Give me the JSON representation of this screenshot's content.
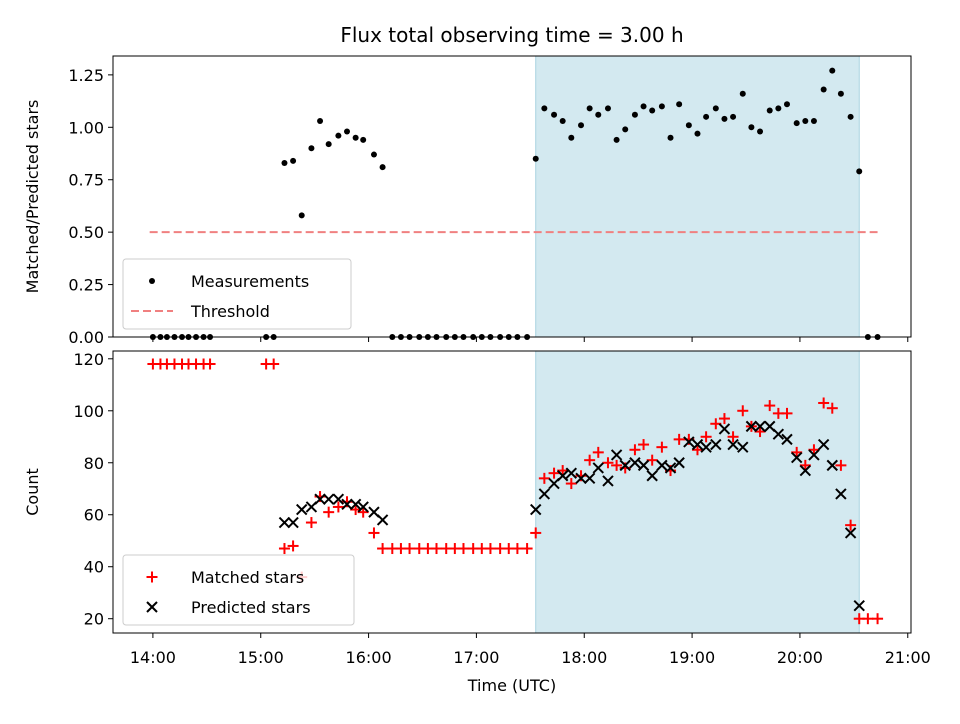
{
  "chart_data": {
    "title": "Flux total observing time = 3.00 h",
    "xlabel": "Time (UTC)",
    "x_tick_labels": [
      "14:00",
      "15:00",
      "16:00",
      "17:00",
      "18:00",
      "19:00",
      "20:00",
      "21:00"
    ],
    "x_tick_values": [
      14,
      15,
      16,
      17,
      18,
      19,
      20,
      21
    ],
    "xlim": [
      13.63,
      21.03
    ],
    "shaded_region": {
      "x_start": 17.55,
      "x_end": 20.55,
      "color": "#d3e9f0"
    },
    "top_panel": {
      "type": "scatter",
      "ylabel": "Matched/Predicted stars",
      "ylim": [
        0,
        1.34
      ],
      "y_tick_labels": [
        "0.00",
        "0.25",
        "0.50",
        "0.75",
        "1.00",
        "1.25"
      ],
      "y_tick_values": [
        0,
        0.25,
        0.5,
        0.75,
        1.0,
        1.25
      ],
      "legend_position": "lower-left",
      "series": [
        {
          "name": "Measurements",
          "color": "#000000",
          "marker": "dot",
          "points": [
            [
              14.0,
              0
            ],
            [
              14.07,
              0
            ],
            [
              14.13,
              0
            ],
            [
              14.2,
              0
            ],
            [
              14.27,
              0
            ],
            [
              14.33,
              0
            ],
            [
              14.4,
              0
            ],
            [
              14.47,
              0
            ],
            [
              14.53,
              0
            ],
            [
              15.05,
              0
            ],
            [
              15.12,
              0
            ],
            [
              15.22,
              0.83
            ],
            [
              15.3,
              0.84
            ],
            [
              15.38,
              0.58
            ],
            [
              15.47,
              0.9
            ],
            [
              15.55,
              1.03
            ],
            [
              15.63,
              0.92
            ],
            [
              15.72,
              0.96
            ],
            [
              15.8,
              0.98
            ],
            [
              15.88,
              0.95
            ],
            [
              15.95,
              0.94
            ],
            [
              16.05,
              0.87
            ],
            [
              16.13,
              0.81
            ],
            [
              16.22,
              0
            ],
            [
              16.3,
              0
            ],
            [
              16.38,
              0
            ],
            [
              16.47,
              0
            ],
            [
              16.55,
              0
            ],
            [
              16.63,
              0
            ],
            [
              16.72,
              0
            ],
            [
              16.8,
              0
            ],
            [
              16.88,
              0
            ],
            [
              16.97,
              0
            ],
            [
              17.05,
              0
            ],
            [
              17.13,
              0
            ],
            [
              17.22,
              0
            ],
            [
              17.3,
              0
            ],
            [
              17.38,
              0
            ],
            [
              17.47,
              0
            ],
            [
              17.55,
              0.85
            ],
            [
              17.63,
              1.09
            ],
            [
              17.72,
              1.06
            ],
            [
              17.8,
              1.03
            ],
            [
              17.88,
              0.95
            ],
            [
              17.97,
              1.01
            ],
            [
              18.05,
              1.09
            ],
            [
              18.13,
              1.06
            ],
            [
              18.22,
              1.09
            ],
            [
              18.3,
              0.94
            ],
            [
              18.38,
              0.99
            ],
            [
              18.47,
              1.06
            ],
            [
              18.55,
              1.1
            ],
            [
              18.63,
              1.08
            ],
            [
              18.72,
              1.1
            ],
            [
              18.8,
              0.95
            ],
            [
              18.88,
              1.11
            ],
            [
              18.97,
              1.01
            ],
            [
              19.05,
              0.97
            ],
            [
              19.13,
              1.05
            ],
            [
              19.22,
              1.09
            ],
            [
              19.3,
              1.04
            ],
            [
              19.38,
              1.05
            ],
            [
              19.47,
              1.16
            ],
            [
              19.55,
              1.0
            ],
            [
              19.63,
              0.98
            ],
            [
              19.72,
              1.08
            ],
            [
              19.8,
              1.09
            ],
            [
              19.88,
              1.11
            ],
            [
              19.97,
              1.02
            ],
            [
              20.05,
              1.03
            ],
            [
              20.13,
              1.03
            ],
            [
              20.22,
              1.18
            ],
            [
              20.3,
              1.27
            ],
            [
              20.38,
              1.16
            ],
            [
              20.47,
              1.05
            ],
            [
              20.55,
              0.79
            ],
            [
              20.63,
              0
            ],
            [
              20.72,
              0
            ]
          ]
        },
        {
          "name": "Threshold",
          "color": "#f08080",
          "style": "dashed",
          "points": [
            [
              13.97,
              0.5
            ],
            [
              20.72,
              0.5
            ]
          ]
        }
      ]
    },
    "bottom_panel": {
      "type": "scatter",
      "ylabel": "Count",
      "ylim": [
        14.5,
        123
      ],
      "y_tick_labels": [
        "20",
        "40",
        "60",
        "80",
        "100",
        "120"
      ],
      "y_tick_values": [
        20,
        40,
        60,
        80,
        100,
        120
      ],
      "legend_position": "lower-left",
      "series": [
        {
          "name": "Matched stars",
          "color": "#ff0000",
          "marker": "plus",
          "points": [
            [
              14.0,
              118
            ],
            [
              14.07,
              118
            ],
            [
              14.13,
              118
            ],
            [
              14.2,
              118
            ],
            [
              14.27,
              118
            ],
            [
              14.33,
              118
            ],
            [
              14.4,
              118
            ],
            [
              14.47,
              118
            ],
            [
              14.53,
              118
            ],
            [
              15.05,
              118
            ],
            [
              15.12,
              118
            ],
            [
              15.22,
              47
            ],
            [
              15.3,
              48
            ],
            [
              15.38,
              36
            ],
            [
              15.47,
              57
            ],
            [
              15.55,
              67
            ],
            [
              15.63,
              61
            ],
            [
              15.72,
              63
            ],
            [
              15.8,
              65
            ],
            [
              15.88,
              62
            ],
            [
              15.95,
              61
            ],
            [
              16.05,
              53
            ],
            [
              16.13,
              47
            ],
            [
              16.22,
              47
            ],
            [
              16.3,
              47
            ],
            [
              16.38,
              47
            ],
            [
              16.47,
              47
            ],
            [
              16.55,
              47
            ],
            [
              16.63,
              47
            ],
            [
              16.72,
              47
            ],
            [
              16.8,
              47
            ],
            [
              16.88,
              47
            ],
            [
              16.97,
              47
            ],
            [
              17.05,
              47
            ],
            [
              17.13,
              47
            ],
            [
              17.22,
              47
            ],
            [
              17.3,
              47
            ],
            [
              17.38,
              47
            ],
            [
              17.47,
              47
            ],
            [
              17.55,
              53
            ],
            [
              17.63,
              74
            ],
            [
              17.72,
              76
            ],
            [
              17.8,
              77
            ],
            [
              17.88,
              72
            ],
            [
              17.97,
              75
            ],
            [
              18.05,
              81
            ],
            [
              18.13,
              84
            ],
            [
              18.22,
              80
            ],
            [
              18.3,
              79
            ],
            [
              18.38,
              78
            ],
            [
              18.47,
              85
            ],
            [
              18.55,
              87
            ],
            [
              18.63,
              81
            ],
            [
              18.72,
              86
            ],
            [
              18.8,
              77
            ],
            [
              18.88,
              89
            ],
            [
              18.97,
              89
            ],
            [
              19.05,
              85
            ],
            [
              19.13,
              90
            ],
            [
              19.22,
              95
            ],
            [
              19.3,
              97
            ],
            [
              19.38,
              90
            ],
            [
              19.47,
              100
            ],
            [
              19.55,
              94
            ],
            [
              19.63,
              92
            ],
            [
              19.72,
              102
            ],
            [
              19.8,
              99
            ],
            [
              19.88,
              99
            ],
            [
              19.97,
              84
            ],
            [
              20.05,
              79
            ],
            [
              20.13,
              85
            ],
            [
              20.22,
              103
            ],
            [
              20.3,
              101
            ],
            [
              20.38,
              79
            ],
            [
              20.47,
              56
            ],
            [
              20.55,
              20
            ],
            [
              20.63,
              20
            ],
            [
              20.72,
              20
            ]
          ]
        },
        {
          "name": "Predicted stars",
          "color": "#000000",
          "marker": "x",
          "points": [
            [
              15.22,
              57
            ],
            [
              15.3,
              57
            ],
            [
              15.38,
              62
            ],
            [
              15.47,
              63
            ],
            [
              15.55,
              66
            ],
            [
              15.63,
              66
            ],
            [
              15.72,
              66
            ],
            [
              15.8,
              64
            ],
            [
              15.88,
              64
            ],
            [
              15.95,
              63
            ],
            [
              16.05,
              61
            ],
            [
              16.13,
              58
            ],
            [
              17.55,
              62
            ],
            [
              17.63,
              68
            ],
            [
              17.72,
              72
            ],
            [
              17.8,
              75
            ],
            [
              17.88,
              76
            ],
            [
              17.97,
              74
            ],
            [
              18.05,
              74
            ],
            [
              18.13,
              78
            ],
            [
              18.22,
              73
            ],
            [
              18.3,
              83
            ],
            [
              18.38,
              79
            ],
            [
              18.47,
              80
            ],
            [
              18.55,
              79
            ],
            [
              18.63,
              75
            ],
            [
              18.72,
              79
            ],
            [
              18.8,
              78
            ],
            [
              18.88,
              80
            ],
            [
              18.97,
              88
            ],
            [
              19.05,
              87
            ],
            [
              19.13,
              86
            ],
            [
              19.22,
              87
            ],
            [
              19.3,
              93
            ],
            [
              19.38,
              87
            ],
            [
              19.47,
              86
            ],
            [
              19.55,
              94
            ],
            [
              19.63,
              94
            ],
            [
              19.72,
              94
            ],
            [
              19.8,
              91
            ],
            [
              19.88,
              89
            ],
            [
              19.97,
              82
            ],
            [
              20.05,
              77
            ],
            [
              20.13,
              83
            ],
            [
              20.22,
              87
            ],
            [
              20.3,
              79
            ],
            [
              20.38,
              68
            ],
            [
              20.47,
              53
            ],
            [
              20.55,
              25
            ]
          ]
        }
      ]
    }
  }
}
